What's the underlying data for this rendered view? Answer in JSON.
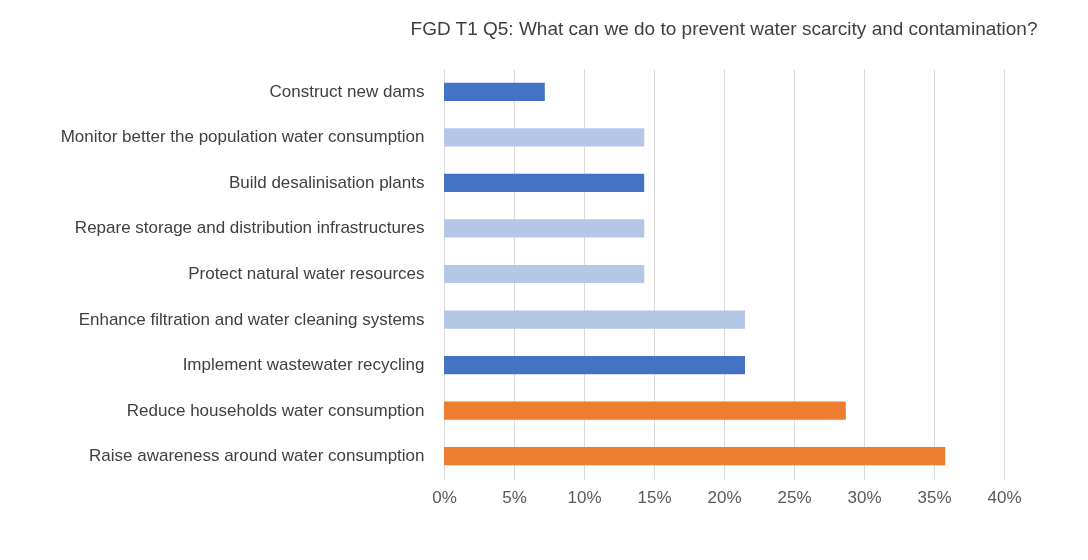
{
  "chart_data": {
    "type": "bar",
    "orientation": "horizontal",
    "title": "FGD T1 Q5: What can we do to prevent water scarcity and contamination?",
    "categories": [
      "Construct new dams",
      "Monitor better the population water consumption",
      "Build desalinisation plants",
      "Repare storage and distribution infrastructures",
      "Protect natural water resources",
      "Enhance filtration and water cleaning systems",
      "Implement wastewater recycling",
      "Reduce households water consumption",
      "Raise awareness around water consumption"
    ],
    "values": [
      7.2,
      14.3,
      14.3,
      14.3,
      14.3,
      21.5,
      21.5,
      28.7,
      35.8
    ],
    "colors": [
      "#4472c4",
      "#b4c7e7",
      "#4472c4",
      "#b4c7e7",
      "#b4c7e7",
      "#b4c7e7",
      "#4472c4",
      "#ed7d31",
      "#ed7d31"
    ],
    "xlim": [
      0,
      40
    ],
    "xticks": [
      {
        "value": 0,
        "label": "0%"
      },
      {
        "value": 5,
        "label": "5%"
      },
      {
        "value": 10,
        "label": "10%"
      },
      {
        "value": 15,
        "label": "15%"
      },
      {
        "value": 20,
        "label": "20%"
      },
      {
        "value": 25,
        "label": "25%"
      },
      {
        "value": 30,
        "label": "30%"
      },
      {
        "value": 35,
        "label": "35%"
      },
      {
        "value": 40,
        "label": "40%"
      }
    ],
    "grid": "x"
  }
}
